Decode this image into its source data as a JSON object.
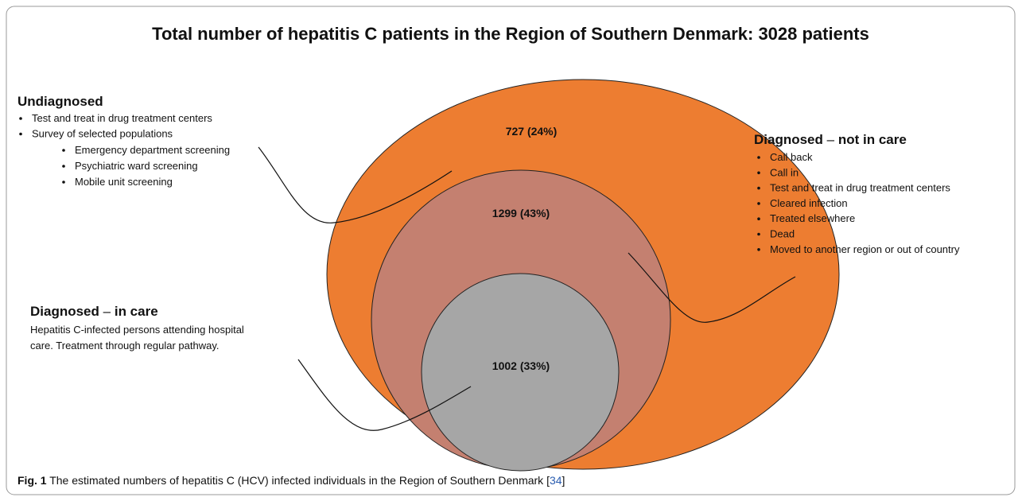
{
  "title": "Total number of hepatitis C patients in the Region of Southern Denmark:  3028 patients",
  "regions": [
    {
      "label": "727 (24%)"
    },
    {
      "label": "1299 (43%)"
    },
    {
      "label": "1002 (33%)"
    }
  ],
  "undiagnosed": {
    "heading": "Undiagnosed",
    "items": [
      "Test and treat in drug treatment centers",
      "Survey of selected populations"
    ],
    "subitems": [
      "Emergency department screening",
      "Psychiatric ward screening",
      "Mobile unit screening"
    ]
  },
  "not_in_care": {
    "heading": "Diagnosed",
    "separator": "–",
    "qualifier": "not in care",
    "items": [
      "Call back",
      "Call in",
      "Test and treat in drug treatment centers",
      "Cleared infection",
      "Treated elsewhere",
      "Dead",
      "Moved to another region or out of country"
    ]
  },
  "in_care": {
    "heading": "Diagnosed",
    "separator": "–",
    "qualifier": "in care",
    "lines": [
      "Hepatitis C-infected persons attending hospital",
      "care. Treatment through regular pathway."
    ]
  },
  "caption": {
    "label": "Fig. 1",
    "text": "The estimated numbers of hepatitis C (HCV) infected individuals in the Region of Southern Denmark",
    "reference": [
      "[",
      "34",
      "]"
    ]
  }
}
